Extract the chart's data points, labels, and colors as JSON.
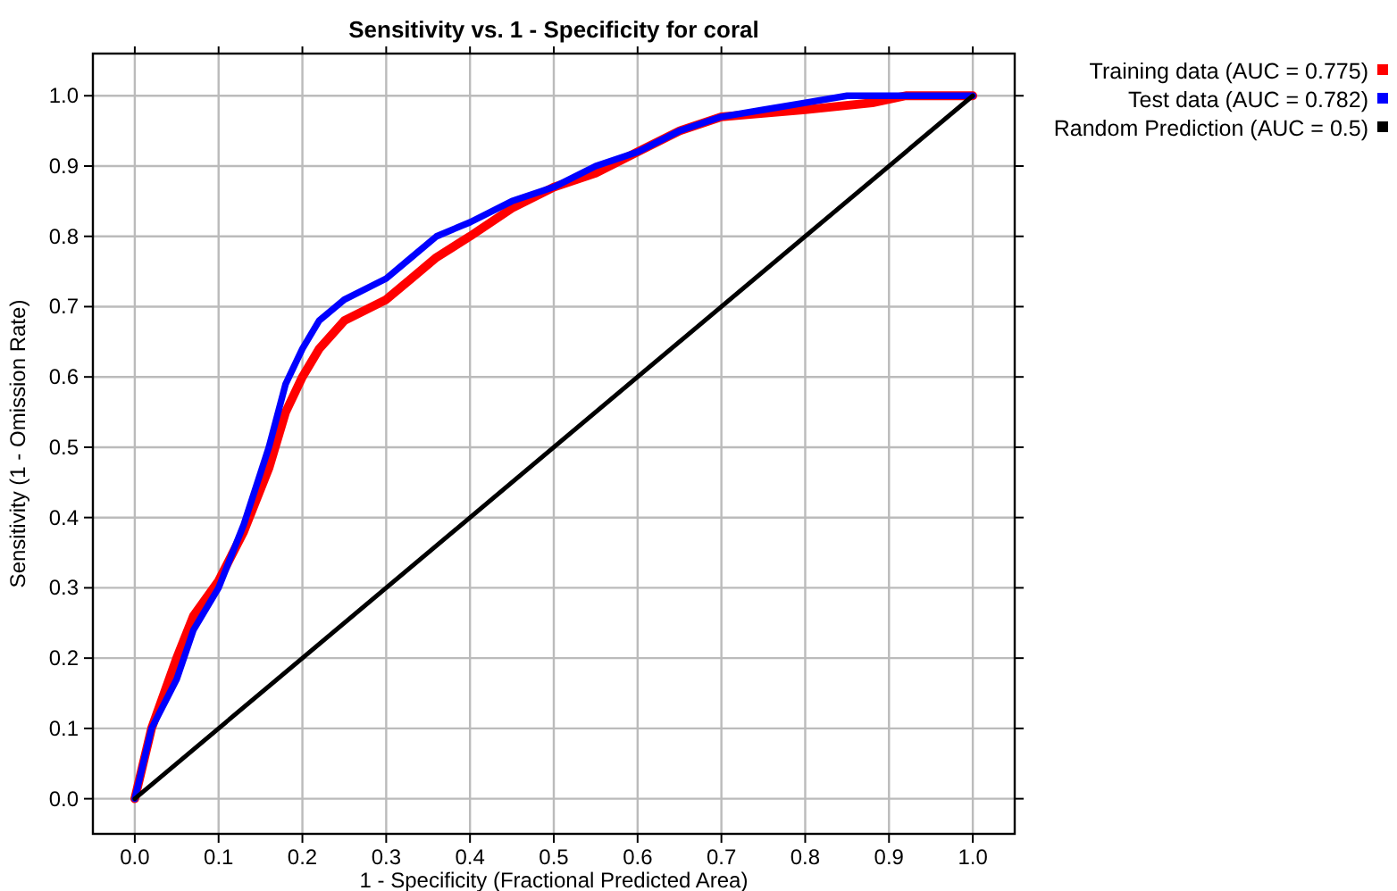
{
  "chart_data": {
    "type": "line",
    "title": "Sensitivity vs. 1 - Specificity for coral",
    "xlabel": "1 - Specificity  (Fractional Predicted Area)",
    "ylabel": "Sensitivity  (1 - Omission Rate)",
    "xlim": [
      -0.05,
      1.05
    ],
    "ylim": [
      -0.05,
      1.06
    ],
    "xticks": [
      {
        "value": 0,
        "label": "0.0"
      },
      {
        "value": 0.1,
        "label": "0.1"
      },
      {
        "value": 0.2,
        "label": "0.2"
      },
      {
        "value": 0.3,
        "label": "0.3"
      },
      {
        "value": 0.4,
        "label": "0.4"
      },
      {
        "value": 0.5,
        "label": "0.5"
      },
      {
        "value": 0.6,
        "label": "0.6"
      },
      {
        "value": 0.7,
        "label": "0.7"
      },
      {
        "value": 0.8,
        "label": "0.8"
      },
      {
        "value": 0.9,
        "label": "0.9"
      },
      {
        "value": 1,
        "label": "1.0"
      }
    ],
    "yticks": [
      {
        "value": 0,
        "label": "0.0"
      },
      {
        "value": 0.1,
        "label": "0.1"
      },
      {
        "value": 0.2,
        "label": "0.2"
      },
      {
        "value": 0.3,
        "label": "0.3"
      },
      {
        "value": 0.4,
        "label": "0.4"
      },
      {
        "value": 0.5,
        "label": "0.5"
      },
      {
        "value": 0.6,
        "label": "0.6"
      },
      {
        "value": 0.7,
        "label": "0.7"
      },
      {
        "value": 0.8,
        "label": "0.8"
      },
      {
        "value": 0.9,
        "label": "0.9"
      },
      {
        "value": 1,
        "label": "1.0"
      }
    ],
    "grid": true,
    "legend": "top right",
    "marker": "none",
    "line_style": "solid",
    "series": [
      {
        "name": "Training data (AUC = 0.775)",
        "color": "#ff0000",
        "x": [
          0,
          0.02,
          0.05,
          0.07,
          0.1,
          0.13,
          0.16,
          0.18,
          0.2,
          0.22,
          0.25,
          0.3,
          0.33,
          0.36,
          0.4,
          0.45,
          0.5,
          0.55,
          0.6,
          0.65,
          0.7,
          0.75,
          0.8,
          0.88,
          0.92,
          1
        ],
        "values": [
          0,
          0.1,
          0.2,
          0.26,
          0.31,
          0.38,
          0.47,
          0.55,
          0.6,
          0.64,
          0.68,
          0.71,
          0.74,
          0.77,
          0.8,
          0.84,
          0.87,
          0.89,
          0.92,
          0.95,
          0.97,
          0.975,
          0.98,
          0.99,
          1,
          1
        ]
      },
      {
        "name": "Test data (AUC = 0.782)",
        "color": "#0000ff",
        "x": [
          0,
          0.02,
          0.05,
          0.07,
          0.1,
          0.13,
          0.16,
          0.18,
          0.2,
          0.22,
          0.25,
          0.3,
          0.33,
          0.36,
          0.4,
          0.45,
          0.5,
          0.55,
          0.6,
          0.65,
          0.7,
          0.75,
          0.8,
          0.85,
          1
        ],
        "values": [
          0,
          0.1,
          0.17,
          0.24,
          0.3,
          0.39,
          0.5,
          0.59,
          0.64,
          0.68,
          0.71,
          0.74,
          0.77,
          0.8,
          0.82,
          0.85,
          0.87,
          0.9,
          0.92,
          0.95,
          0.97,
          0.98,
          0.99,
          1,
          1
        ]
      },
      {
        "name": "Random Prediction (AUC = 0.5)",
        "color": "#000000",
        "x": [
          0,
          1
        ],
        "values": [
          0,
          1
        ]
      }
    ]
  }
}
